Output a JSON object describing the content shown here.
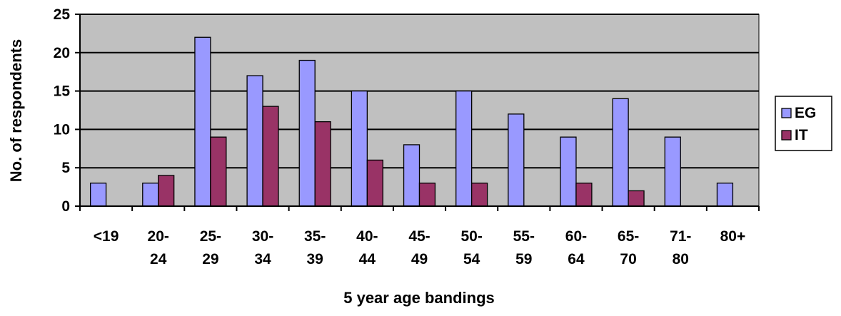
{
  "chart_data": {
    "type": "bar",
    "categories": [
      [
        "<19"
      ],
      [
        "20-",
        "24"
      ],
      [
        "25-",
        "29"
      ],
      [
        "30-",
        "34"
      ],
      [
        "35-",
        "39"
      ],
      [
        "40-",
        "44"
      ],
      [
        "45-",
        "49"
      ],
      [
        "50-",
        "54"
      ],
      [
        "55-",
        "59"
      ],
      [
        "60-",
        "64"
      ],
      [
        "65-",
        "70"
      ],
      [
        "71-",
        "80"
      ],
      [
        "80+"
      ]
    ],
    "series": [
      {
        "name": "EG",
        "values": [
          3,
          3,
          22,
          17,
          19,
          15,
          8,
          15,
          12,
          9,
          14,
          9,
          3
        ]
      },
      {
        "name": "IT",
        "values": [
          0,
          4,
          9,
          13,
          11,
          6,
          3,
          3,
          0,
          3,
          2,
          0,
          0
        ]
      }
    ],
    "xlabel": "5 year age bandings",
    "ylabel": "No. of respondents",
    "ylim": [
      0,
      25
    ],
    "yticks": [
      0,
      5,
      10,
      15,
      20,
      25
    ],
    "grid": true,
    "legend_position": "right",
    "colors": {
      "EG": "#9999ff",
      "IT": "#993366",
      "plot_background": "#c0c0c0",
      "gridline": "#000000"
    }
  }
}
